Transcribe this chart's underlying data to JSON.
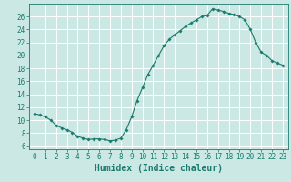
{
  "title": "",
  "xlabel": "Humidex (Indice chaleur)",
  "ylabel": "",
  "x_values": [
    0,
    0.5,
    1,
    1.5,
    2,
    2.5,
    3,
    3.5,
    4,
    4.5,
    5,
    5.5,
    6,
    6.5,
    7,
    7.5,
    8,
    8.5,
    9,
    9.5,
    10,
    10.5,
    11,
    11.5,
    12,
    12.5,
    13,
    13.5,
    14,
    14.5,
    15,
    15.5,
    16,
    16.5,
    17,
    17.5,
    18,
    18.5,
    19,
    19.5,
    20,
    20.5,
    21,
    21.5,
    22,
    22.5,
    23
  ],
  "y_values": [
    11.0,
    10.8,
    10.5,
    10.0,
    9.2,
    8.8,
    8.5,
    8.1,
    7.5,
    7.2,
    7.0,
    7.1,
    7.1,
    7.0,
    6.8,
    6.9,
    7.2,
    8.5,
    10.5,
    13.0,
    15.0,
    17.0,
    18.5,
    20.0,
    21.5,
    22.5,
    23.2,
    23.8,
    24.5,
    25.0,
    25.5,
    26.0,
    26.2,
    27.2,
    27.0,
    26.8,
    26.5,
    26.3,
    26.0,
    25.5,
    24.0,
    22.0,
    20.5,
    20.0,
    19.2,
    18.8,
    18.5
  ],
  "line_color": "#1a7a6e",
  "marker": "D",
  "marker_size": 1.8,
  "linewidth": 0.8,
  "xlim": [
    -0.5,
    23.5
  ],
  "ylim": [
    5.5,
    28
  ],
  "yticks": [
    6,
    8,
    10,
    12,
    14,
    16,
    18,
    20,
    22,
    24,
    26
  ],
  "xticks": [
    0,
    1,
    2,
    3,
    4,
    5,
    6,
    7,
    8,
    9,
    10,
    11,
    12,
    13,
    14,
    15,
    16,
    17,
    18,
    19,
    20,
    21,
    22,
    23
  ],
  "background_color": "#cce8e4",
  "grid_color": "#ffffff",
  "tick_color": "#1a7a6e",
  "label_color": "#1a7a6e",
  "xlabel_fontsize": 7,
  "tick_fontsize": 5.5
}
